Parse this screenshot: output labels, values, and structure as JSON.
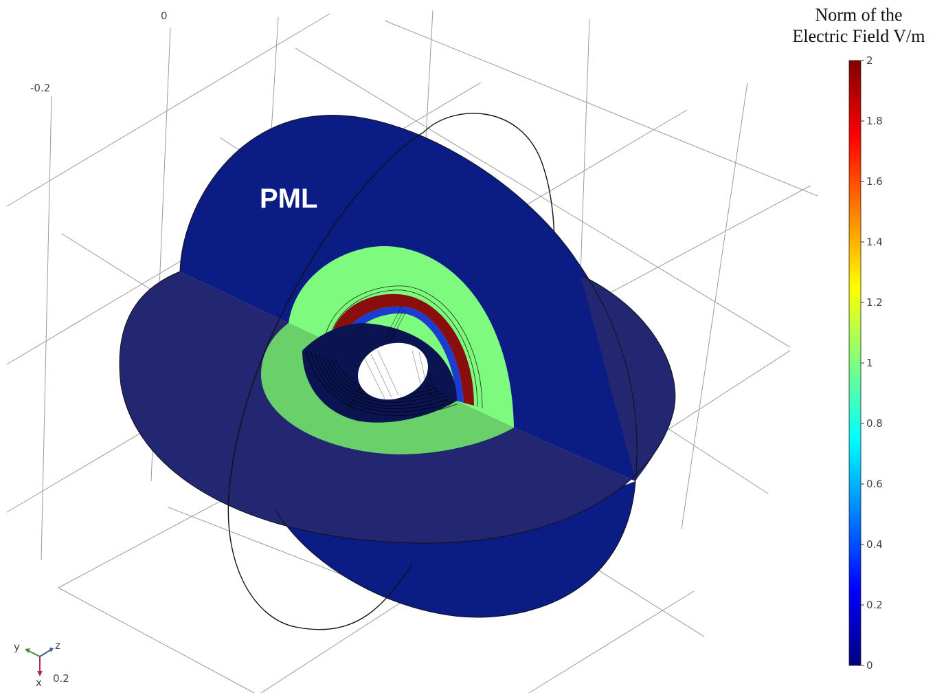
{
  "chart_data": {
    "type": "surface-3d",
    "title": "",
    "region_label": "PML",
    "axis_tick_labels": [
      "-0.2",
      "0",
      "0.2"
    ],
    "orientation_axes": [
      "y",
      "z",
      "x"
    ],
    "colorbar": {
      "title_lines": [
        "Norm of the",
        "Electric Field V/m"
      ],
      "min": 0,
      "max": 2,
      "ticks": [
        "2",
        "1.8",
        "1.6",
        "1.4",
        "1.2",
        "1",
        "0.8",
        "0.6",
        "0.4",
        "0.2",
        "0"
      ],
      "colormap": "jet",
      "stops": [
        "#00007f",
        "#0000ff",
        "#0080ff",
        "#00ffff",
        "#80ff80",
        "#ffff00",
        "#ff8000",
        "#ff0000",
        "#7f0000"
      ]
    },
    "field_colors": {
      "pml_vertical": "#0c1c85",
      "pml_horizontal": "#232670",
      "air_vertical": "#7efa7e",
      "air_horizontal": "#6ad06a",
      "scatterer_rim": "#8a0e0e",
      "interior": "#0a1450"
    }
  }
}
